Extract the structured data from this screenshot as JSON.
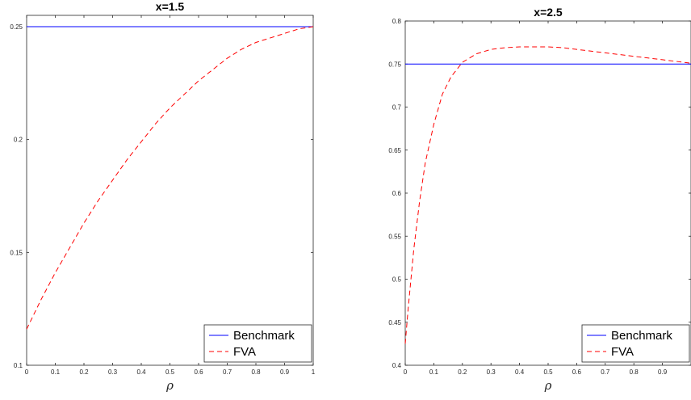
{
  "chart_data": [
    {
      "type": "line",
      "title": "x=1.5",
      "xlabel": "ρ",
      "ylabel": "",
      "xlim": [
        0,
        1
      ],
      "ylim": [
        0.1,
        0.255
      ],
      "xticks": [
        0,
        0.1,
        0.2,
        0.3,
        0.4,
        0.5,
        0.6,
        0.7,
        0.8,
        0.9,
        1
      ],
      "xtick_labels": [
        "0",
        "0.1",
        "0.2",
        "0.3",
        "0.4",
        "0.5",
        "0.6",
        "0.7",
        "0.8",
        "0.9",
        "1"
      ],
      "yticks": [
        0.1,
        0.15,
        0.2,
        0.25
      ],
      "ytick_labels": [
        "0.1",
        "0.15",
        "0.2",
        "0.25"
      ],
      "legend_position": "bottom-right",
      "series": [
        {
          "name": "Benchmark",
          "style": "solid",
          "color": "#0000ff",
          "x": [
            0,
            1
          ],
          "y": [
            0.25,
            0.25
          ]
        },
        {
          "name": "FVA",
          "style": "dashed",
          "color": "#ff0000",
          "x": [
            0,
            0.05,
            0.1,
            0.15,
            0.2,
            0.25,
            0.3,
            0.35,
            0.4,
            0.45,
            0.5,
            0.55,
            0.6,
            0.65,
            0.7,
            0.75,
            0.8,
            0.85,
            0.9,
            0.95,
            1
          ],
          "y": [
            0.116,
            0.129,
            0.141,
            0.152,
            0.163,
            0.173,
            0.182,
            0.191,
            0.199,
            0.207,
            0.214,
            0.22,
            0.226,
            0.231,
            0.236,
            0.24,
            0.243,
            0.245,
            0.247,
            0.249,
            0.25
          ]
        }
      ]
    },
    {
      "type": "line",
      "title": "x=2.5",
      "xlabel": "ρ",
      "ylabel": "",
      "xlim": [
        0,
        1
      ],
      "ylim": [
        0.4,
        0.8
      ],
      "xticks": [
        0,
        0.1,
        0.2,
        0.3,
        0.4,
        0.5,
        0.6,
        0.7,
        0.8,
        0.9
      ],
      "xtick_labels": [
        "0",
        "0.1",
        "0.2",
        "0.3",
        "0.4",
        "0.5",
        "0.6",
        "0.7",
        "0.8",
        "0.9"
      ],
      "yticks": [
        0.4,
        0.45,
        0.5,
        0.55,
        0.6,
        0.65,
        0.7,
        0.75,
        0.8
      ],
      "ytick_labels": [
        "0.4",
        "0.45",
        "0.5",
        "0.55",
        "0.6",
        "0.65",
        "0.7",
        "0.75",
        "0.8"
      ],
      "legend_position": "bottom-right",
      "series": [
        {
          "name": "Benchmark",
          "style": "solid",
          "color": "#0000ff",
          "x": [
            0,
            1
          ],
          "y": [
            0.75,
            0.75
          ]
        },
        {
          "name": "FVA",
          "style": "dashed",
          "color": "#ff0000",
          "x": [
            0,
            0.01,
            0.02,
            0.03,
            0.05,
            0.07,
            0.1,
            0.13,
            0.16,
            0.2,
            0.25,
            0.3,
            0.35,
            0.4,
            0.45,
            0.5,
            0.55,
            0.6,
            0.65,
            0.7,
            0.75,
            0.8,
            0.85,
            0.9,
            0.95,
            1
          ],
          "y": [
            0.425,
            0.465,
            0.5,
            0.535,
            0.59,
            0.635,
            0.68,
            0.715,
            0.735,
            0.752,
            0.762,
            0.767,
            0.769,
            0.77,
            0.77,
            0.77,
            0.769,
            0.767,
            0.765,
            0.763,
            0.761,
            0.759,
            0.757,
            0.755,
            0.753,
            0.751
          ]
        }
      ]
    }
  ]
}
